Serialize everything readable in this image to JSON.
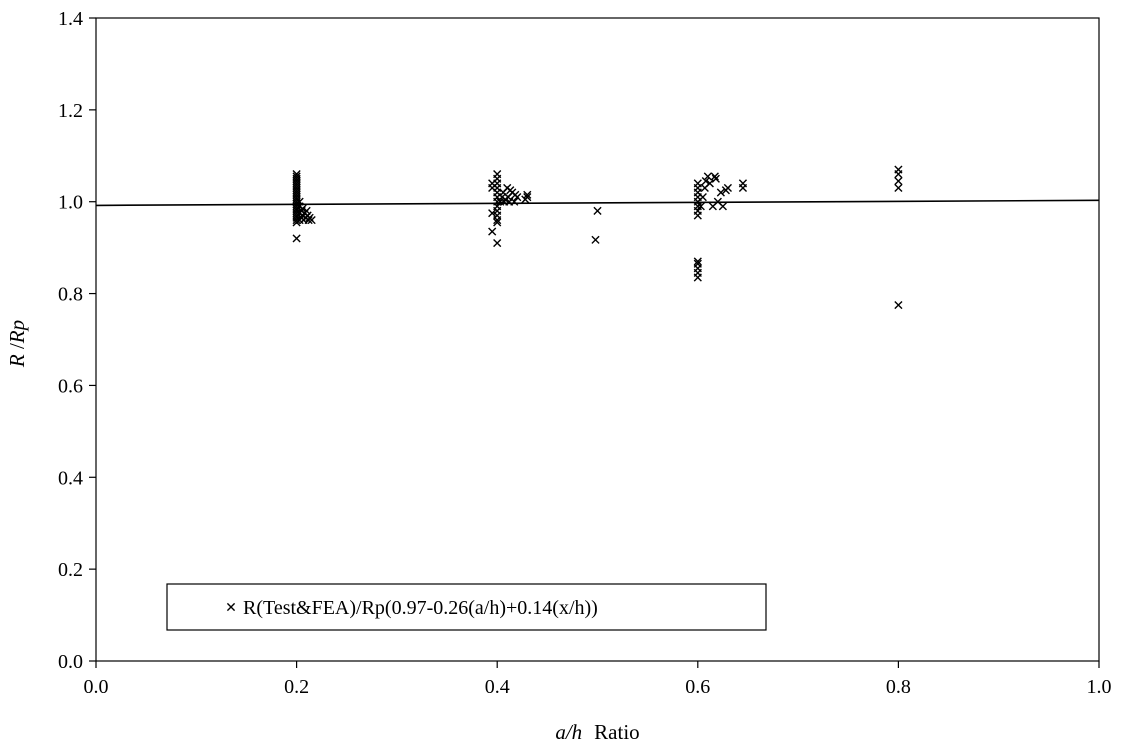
{
  "chart_data": {
    "type": "scatter",
    "title": "",
    "xlabel": {
      "italic": "a/h",
      "plain": "Ratio"
    },
    "ylabel": {
      "italic_r": "R",
      "sep": " /",
      "italic_rp": "Rp"
    },
    "xlim": [
      0.0,
      1.0
    ],
    "ylim": [
      0.0,
      1.4
    ],
    "xticks": [
      0.0,
      0.2,
      0.4,
      0.6,
      0.8,
      1.0
    ],
    "yticks": [
      0.0,
      0.2,
      0.4,
      0.6,
      0.8,
      1.0,
      1.2,
      1.4
    ],
    "tick_format_decimals": 1,
    "grid": false,
    "legend_position": "bottom-left",
    "series": [
      {
        "name": "R(Test&FEA)/Rp(0.97-0.26(a/h)+0.14(x/h))",
        "marker": "x",
        "color": "#000000",
        "points": [
          [
            0.2,
            0.92
          ],
          [
            0.2,
            0.955
          ],
          [
            0.2,
            0.96
          ],
          [
            0.2,
            0.965
          ],
          [
            0.2,
            0.97
          ],
          [
            0.2,
            0.975
          ],
          [
            0.2,
            0.98
          ],
          [
            0.2,
            0.985
          ],
          [
            0.2,
            0.99
          ],
          [
            0.2,
            0.995
          ],
          [
            0.2,
            1.0
          ],
          [
            0.2,
            1.005
          ],
          [
            0.2,
            1.01
          ],
          [
            0.2,
            1.015
          ],
          [
            0.2,
            1.02
          ],
          [
            0.2,
            1.025
          ],
          [
            0.2,
            1.03
          ],
          [
            0.2,
            1.035
          ],
          [
            0.2,
            1.04
          ],
          [
            0.2,
            1.045
          ],
          [
            0.2,
            1.05
          ],
          [
            0.2,
            1.055
          ],
          [
            0.2,
            1.06
          ],
          [
            0.203,
            0.96
          ],
          [
            0.203,
            0.975
          ],
          [
            0.203,
            0.99
          ],
          [
            0.203,
            1.0
          ],
          [
            0.205,
            0.965
          ],
          [
            0.205,
            0.98
          ],
          [
            0.206,
            0.97
          ],
          [
            0.206,
            0.985
          ],
          [
            0.207,
            0.96
          ],
          [
            0.208,
            0.975
          ],
          [
            0.209,
            0.965
          ],
          [
            0.21,
            0.98
          ],
          [
            0.211,
            0.97
          ],
          [
            0.212,
            0.96
          ],
          [
            0.213,
            0.965
          ],
          [
            0.215,
            0.96
          ],
          [
            0.395,
            0.935
          ],
          [
            0.395,
            0.975
          ],
          [
            0.395,
            1.03
          ],
          [
            0.395,
            1.04
          ],
          [
            0.4,
            0.91
          ],
          [
            0.4,
            0.955
          ],
          [
            0.4,
            0.96
          ],
          [
            0.4,
            0.97
          ],
          [
            0.4,
            0.98
          ],
          [
            0.4,
            0.99
          ],
          [
            0.4,
            1.0
          ],
          [
            0.4,
            1.01
          ],
          [
            0.4,
            1.02
          ],
          [
            0.4,
            1.03
          ],
          [
            0.4,
            1.04
          ],
          [
            0.4,
            1.05
          ],
          [
            0.4,
            1.06
          ],
          [
            0.403,
            1.0
          ],
          [
            0.405,
            1.01
          ],
          [
            0.406,
            1.02
          ],
          [
            0.407,
            1.0
          ],
          [
            0.408,
            1.005
          ],
          [
            0.41,
            1.03
          ],
          [
            0.411,
            1.01
          ],
          [
            0.412,
            1.0
          ],
          [
            0.413,
            1.025
          ],
          [
            0.415,
            1.02
          ],
          [
            0.417,
            1.0
          ],
          [
            0.418,
            1.015
          ],
          [
            0.42,
            1.01
          ],
          [
            0.428,
            1.005
          ],
          [
            0.43,
            1.01
          ],
          [
            0.43,
            1.015
          ],
          [
            0.498,
            0.917
          ],
          [
            0.5,
            0.98
          ],
          [
            0.6,
            0.835
          ],
          [
            0.6,
            0.845
          ],
          [
            0.6,
            0.855
          ],
          [
            0.6,
            0.865
          ],
          [
            0.6,
            0.87
          ],
          [
            0.6,
            0.97
          ],
          [
            0.6,
            0.98
          ],
          [
            0.6,
            0.99
          ],
          [
            0.6,
            1.0
          ],
          [
            0.6,
            1.01
          ],
          [
            0.6,
            1.02
          ],
          [
            0.6,
            1.03
          ],
          [
            0.6,
            1.04
          ],
          [
            0.603,
            0.99
          ],
          [
            0.605,
            1.01
          ],
          [
            0.607,
            1.03
          ],
          [
            0.608,
            1.045
          ],
          [
            0.61,
            1.055
          ],
          [
            0.612,
            1.04
          ],
          [
            0.615,
            0.99
          ],
          [
            0.617,
            1.055
          ],
          [
            0.618,
            1.05
          ],
          [
            0.62,
            1.0
          ],
          [
            0.623,
            1.02
          ],
          [
            0.625,
            0.99
          ],
          [
            0.628,
            1.025
          ],
          [
            0.63,
            1.03
          ],
          [
            0.645,
            1.03
          ],
          [
            0.645,
            1.04
          ],
          [
            0.8,
            0.775
          ],
          [
            0.8,
            1.03
          ],
          [
            0.8,
            1.045
          ],
          [
            0.8,
            1.06
          ],
          [
            0.8,
            1.07
          ]
        ]
      }
    ],
    "trendline": {
      "type": "linear",
      "x": [
        0.0,
        1.0
      ],
      "y": [
        0.992,
        1.003
      ],
      "color": "#000000"
    }
  }
}
